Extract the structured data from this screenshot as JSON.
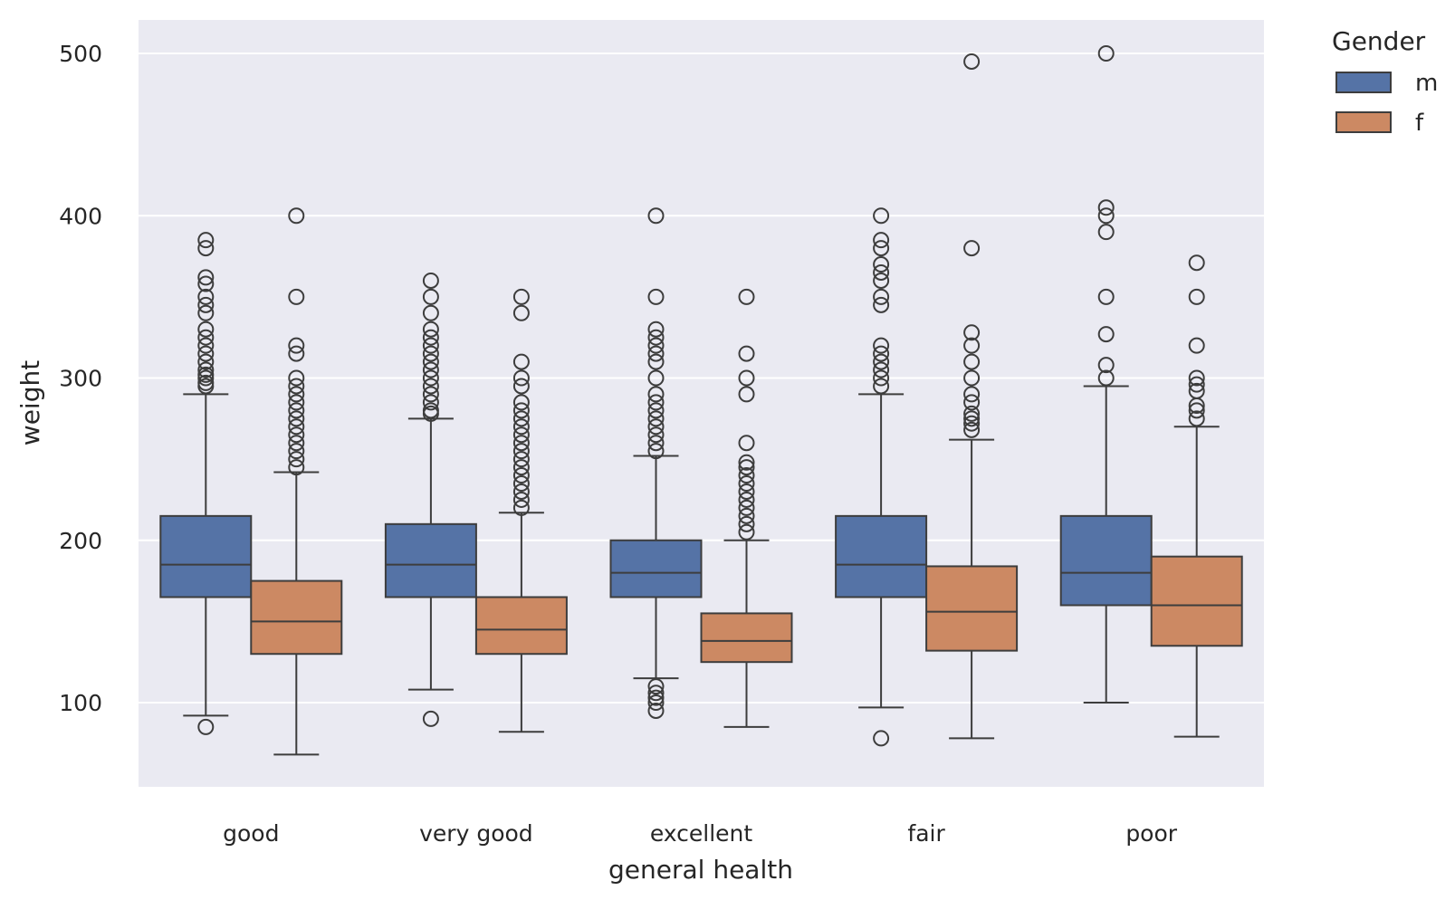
{
  "chart_data": {
    "type": "box",
    "xlabel": "general health",
    "ylabel": "weight",
    "ylim": [
      45,
      520
    ],
    "yticks": [
      100,
      200,
      300,
      400,
      500
    ],
    "categories": [
      "good",
      "very good",
      "excellent",
      "fair",
      "poor"
    ],
    "grid": true,
    "legend": {
      "title": "Gender",
      "placement": "outside-right"
    },
    "series": [
      {
        "name": "m",
        "color": "#5573a6",
        "boxes": [
          {
            "q1": 165,
            "median": 185,
            "q3": 215,
            "whisker_low": 92,
            "whisker_high": 290,
            "outliers": [
              85,
              295,
              297,
              300,
              302,
              305,
              310,
              315,
              320,
              325,
              330,
              340,
              345,
              350,
              358,
              362,
              380,
              385
            ]
          },
          {
            "q1": 165,
            "median": 185,
            "q3": 210,
            "whisker_low": 108,
            "whisker_high": 275,
            "outliers": [
              90,
              278,
              280,
              285,
              290,
              295,
              300,
              305,
              310,
              315,
              320,
              325,
              330,
              340,
              350,
              360
            ]
          },
          {
            "q1": 165,
            "median": 180,
            "q3": 200,
            "whisker_low": 115,
            "whisker_high": 252,
            "outliers": [
              95,
              100,
              103,
              106,
              110,
              255,
              260,
              265,
              270,
              275,
              280,
              285,
              290,
              300,
              310,
              315,
              320,
              325,
              330,
              350,
              400
            ]
          },
          {
            "q1": 165,
            "median": 185,
            "q3": 215,
            "whisker_low": 97,
            "whisker_high": 290,
            "outliers": [
              78,
              295,
              300,
              305,
              310,
              315,
              320,
              345,
              350,
              360,
              365,
              370,
              380,
              385,
              400
            ]
          },
          {
            "q1": 160,
            "median": 180,
            "q3": 215,
            "whisker_low": 100,
            "whisker_high": 295,
            "outliers": [
              300,
              308,
              327,
              350,
              390,
              400,
              405,
              500
            ]
          }
        ]
      },
      {
        "name": "f",
        "color": "#cc8963",
        "boxes": [
          {
            "q1": 130,
            "median": 150,
            "q3": 175,
            "whisker_low": 68,
            "whisker_high": 242,
            "outliers": [
              245,
              250,
              255,
              260,
              265,
              270,
              275,
              280,
              285,
              290,
              295,
              300,
              315,
              320,
              350,
              400
            ]
          },
          {
            "q1": 130,
            "median": 145,
            "q3": 165,
            "whisker_low": 82,
            "whisker_high": 217,
            "outliers": [
              220,
              225,
              230,
              235,
              240,
              245,
              250,
              255,
              260,
              265,
              270,
              275,
              280,
              285,
              295,
              300,
              310,
              340,
              350
            ]
          },
          {
            "q1": 125,
            "median": 138,
            "q3": 155,
            "whisker_low": 85,
            "whisker_high": 200,
            "outliers": [
              205,
              210,
              215,
              220,
              225,
              230,
              235,
              240,
              245,
              248,
              260,
              290,
              300,
              315,
              350
            ]
          },
          {
            "q1": 132,
            "median": 156,
            "q3": 184,
            "whisker_low": 78,
            "whisker_high": 262,
            "outliers": [
              268,
              272,
              275,
              278,
              285,
              290,
              300,
              310,
              320,
              328,
              380,
              495
            ]
          },
          {
            "q1": 135,
            "median": 160,
            "q3": 190,
            "whisker_low": 79,
            "whisker_high": 270,
            "outliers": [
              275,
              280,
              283,
              292,
              296,
              300,
              320,
              350,
              371
            ]
          }
        ]
      }
    ]
  }
}
